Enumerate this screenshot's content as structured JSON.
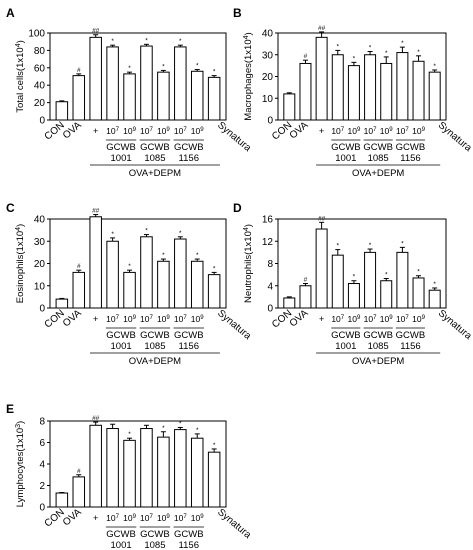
{
  "chart_data": [
    {
      "type": "bar",
      "panel_label": "A",
      "ylabel_main": "Total cells",
      "ylabel_unit": "(1x10",
      "ylabel_exp": "4",
      "ylabel_close": ")",
      "ylim": [
        0,
        100
      ],
      "yticks": [
        "0",
        "20",
        "40",
        "60",
        "80",
        "100"
      ],
      "values": [
        21,
        51,
        95,
        84,
        53,
        85,
        55,
        84,
        56,
        49
      ],
      "errors": [
        1,
        2,
        3,
        2,
        2,
        2,
        2,
        2,
        2,
        2
      ],
      "marks": [
        "",
        "#",
        "##",
        "*",
        "*",
        "*",
        "*",
        "*",
        "*",
        "*"
      ]
    },
    {
      "type": "bar",
      "panel_label": "B",
      "ylabel_main": "Macrophages",
      "ylabel_unit": "(1x10",
      "ylabel_exp": "4",
      "ylabel_close": ")",
      "ylim": [
        0,
        40
      ],
      "yticks": [
        "0",
        "10",
        "20",
        "30",
        "40"
      ],
      "values": [
        12,
        26,
        38,
        30,
        25,
        30,
        26,
        31,
        27,
        22
      ],
      "errors": [
        0.5,
        1.5,
        2.5,
        2,
        1.5,
        1.5,
        3,
        2.5,
        2.5,
        1
      ],
      "marks": [
        "",
        "#",
        "##",
        "*",
        "*",
        "*",
        "*",
        "*",
        "*",
        "*"
      ]
    },
    {
      "type": "bar",
      "panel_label": "C",
      "ylabel_main": "Eosinophils",
      "ylabel_unit": "(1x10",
      "ylabel_exp": "4",
      "ylabel_close": ")",
      "ylim": [
        0,
        40
      ],
      "yticks": [
        "0",
        "10",
        "20",
        "30",
        "40"
      ],
      "values": [
        4,
        16,
        41,
        30,
        16,
        32,
        21,
        31,
        21,
        15
      ],
      "errors": [
        0.3,
        1,
        1,
        1.5,
        1,
        1,
        1,
        1,
        1,
        1
      ],
      "marks": [
        "",
        "#",
        "##",
        "*",
        "*",
        "*",
        "*",
        "*",
        "*",
        "*"
      ]
    },
    {
      "type": "bar",
      "panel_label": "D",
      "ylabel_main": "Neutrophils",
      "ylabel_unit": "(1x10",
      "ylabel_exp": "4",
      "ylabel_close": ")",
      "ylim": [
        0,
        16
      ],
      "yticks": [
        "0",
        "4",
        "8",
        "12",
        "16"
      ],
      "values": [
        1.8,
        4,
        14.2,
        9.5,
        4.4,
        10,
        4.9,
        10,
        5.4,
        3.2
      ],
      "errors": [
        0.2,
        0.4,
        1.2,
        1,
        0.5,
        0.6,
        0.4,
        0.9,
        0.4,
        0.4
      ],
      "marks": [
        "",
        "#",
        "##",
        "*",
        "*",
        "*",
        "*",
        "*",
        "*",
        "*"
      ]
    },
    {
      "type": "bar",
      "panel_label": "E",
      "ylabel_main": "Lymphocytes",
      "ylabel_unit": "(1x10",
      "ylabel_exp": "3",
      "ylabel_close": ")",
      "ylim": [
        0,
        8
      ],
      "yticks": [
        "0",
        "2",
        "4",
        "6",
        "8"
      ],
      "values": [
        1.3,
        2.8,
        7.6,
        7.3,
        6.2,
        7.3,
        6.5,
        7.2,
        6.4,
        5.1
      ],
      "errors": [
        0.05,
        0.2,
        0.3,
        0.4,
        0.2,
        0.3,
        0.5,
        0.2,
        0.4,
        0.3
      ],
      "marks": [
        "",
        "#",
        "##",
        "",
        "*",
        "",
        "*",
        "*",
        "*",
        "*"
      ]
    }
  ],
  "x_labels": {
    "con": "CON",
    "ova": "OVA",
    "plus": "+",
    "dose_lo_base": "10",
    "dose_lo_exp": "7",
    "dose_hi_base": "10",
    "dose_hi_exp": "9",
    "synatura": "Synatura",
    "gcwb_prefix": "GCWB",
    "strains": [
      "1001",
      "1085",
      "1156"
    ],
    "group": "OVA+DEPM"
  }
}
